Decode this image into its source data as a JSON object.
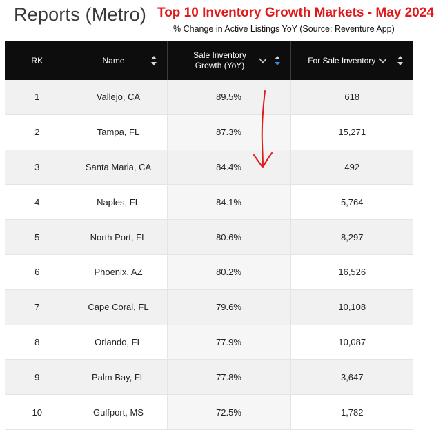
{
  "page": {
    "title": "Reports (Metro)",
    "headline": "Top 10 Inventory Growth Markets - May 2024",
    "subheadline": "% Change in Active Listings YoY (Source: Reventure App)"
  },
  "table": {
    "headers": {
      "rank": "RK",
      "name": "Name",
      "growth_line1": "Sale Inventory",
      "growth_line2": "Growth (YoY)",
      "inventory": "For Sale Inventory"
    },
    "rows": [
      {
        "rank": "1",
        "name": "Vallejo, CA",
        "growth": "89.5%",
        "inventory": "618"
      },
      {
        "rank": "2",
        "name": "Tampa, FL",
        "growth": "87.3%",
        "inventory": "15,271"
      },
      {
        "rank": "3",
        "name": "Santa Maria, CA",
        "growth": "84.4%",
        "inventory": "492"
      },
      {
        "rank": "4",
        "name": "Naples, FL",
        "growth": "84.1%",
        "inventory": "5,764"
      },
      {
        "rank": "5",
        "name": "North Port, FL",
        "growth": "80.6%",
        "inventory": "8,297"
      },
      {
        "rank": "6",
        "name": "Phoenix, AZ",
        "growth": "80.2%",
        "inventory": "16,526"
      },
      {
        "rank": "7",
        "name": "Cape Coral, FL",
        "growth": "79.6%",
        "inventory": "10,108"
      },
      {
        "rank": "8",
        "name": "Orlando, FL",
        "growth": "77.9%",
        "inventory": "10,087"
      },
      {
        "rank": "9",
        "name": "Palm Bay, FL",
        "growth": "77.8%",
        "inventory": "3,647"
      },
      {
        "rank": "10",
        "name": "Gulfport, MS",
        "growth": "72.5%",
        "inventory": "1,782"
      }
    ]
  },
  "icons": {
    "sort_neutral": "sort-up-down-icon",
    "sort_active": "sort-descending-icon",
    "dropdown": "chevron-down-icon",
    "annotation": "hand-drawn-down-arrow"
  },
  "colors": {
    "headline": "#e01a1a",
    "header_bg": "#0d0d0d",
    "sort_active": "#2f8fe6",
    "annotation": "#e01a1a"
  }
}
